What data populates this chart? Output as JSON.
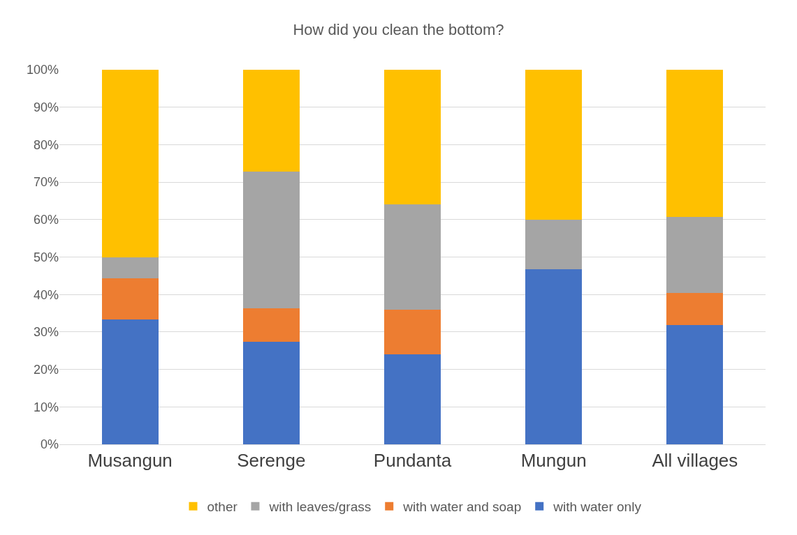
{
  "chart_data": {
    "type": "bar",
    "title": "How did you clean the bottom?",
    "stacked": true,
    "categories": [
      "Musangun",
      "Serenge",
      "Pundanta",
      "Mungun",
      "All villages"
    ],
    "series": [
      {
        "name": "with water only",
        "color": "#4472c4",
        "values": [
          33.3,
          27.3,
          24,
          46.7,
          31.9
        ]
      },
      {
        "name": "with water and soap",
        "color": "#ed7d31",
        "values": [
          11.1,
          9.1,
          12,
          0,
          8.6
        ]
      },
      {
        "name": "with leaves/grass",
        "color": "#a5a5a5",
        "values": [
          5.6,
          36.4,
          28,
          13.3,
          20.3
        ]
      },
      {
        "name": "other",
        "color": "#ffc000",
        "values": [
          50,
          27.3,
          36,
          40,
          39.2
        ]
      }
    ],
    "ylim": [
      0,
      100
    ],
    "yticks": [
      {
        "value": 0,
        "label": "0%"
      },
      {
        "value": 10,
        "label": "10%"
      },
      {
        "value": 20,
        "label": "20%"
      },
      {
        "value": 30,
        "label": "30%"
      },
      {
        "value": 40,
        "label": "40%"
      },
      {
        "value": 50,
        "label": "50%"
      },
      {
        "value": 60,
        "label": "60%"
      },
      {
        "value": 70,
        "label": "70%"
      },
      {
        "value": 80,
        "label": "80%"
      },
      {
        "value": 90,
        "label": "90%"
      },
      {
        "value": 100,
        "label": "100%"
      }
    ],
    "grid": "y",
    "legend": "bottom"
  }
}
